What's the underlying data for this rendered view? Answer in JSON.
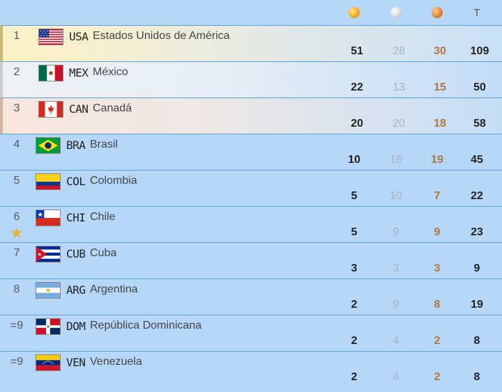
{
  "header": {
    "total_label": "T"
  },
  "rows": [
    {
      "rank": "1",
      "code": "USA",
      "name": "Estados Unidos de América",
      "gold": "51",
      "silver": "28",
      "bronze": "30",
      "total": "109"
    },
    {
      "rank": "2",
      "code": "MEX",
      "name": "México",
      "gold": "22",
      "silver": "13",
      "bronze": "15",
      "total": "50"
    },
    {
      "rank": "3",
      "code": "CAN",
      "name": "Canadá",
      "gold": "20",
      "silver": "20",
      "bronze": "18",
      "total": "58"
    },
    {
      "rank": "4",
      "code": "BRA",
      "name": "Brasil",
      "gold": "10",
      "silver": "16",
      "bronze": "19",
      "total": "45"
    },
    {
      "rank": "5",
      "code": "COL",
      "name": "Colombia",
      "gold": "5",
      "silver": "10",
      "bronze": "7",
      "total": "22"
    },
    {
      "rank": "6",
      "code": "CHI",
      "name": "Chile",
      "gold": "5",
      "silver": "9",
      "bronze": "9",
      "total": "23"
    },
    {
      "rank": "7",
      "code": "CUB",
      "name": "Cuba",
      "gold": "3",
      "silver": "3",
      "bronze": "3",
      "total": "9"
    },
    {
      "rank": "8",
      "code": "ARG",
      "name": "Argentina",
      "gold": "2",
      "silver": "9",
      "bronze": "8",
      "total": "19"
    },
    {
      "rank": "=9",
      "code": "DOM",
      "name": "República Dominicana",
      "gold": "2",
      "silver": "4",
      "bronze": "2",
      "total": "8"
    },
    {
      "rank": "=9",
      "code": "VEN",
      "name": "Venezuela",
      "gold": "2",
      "silver": "4",
      "bronze": "2",
      "total": "8"
    }
  ],
  "host_marker": "star-icon",
  "colors": {
    "background": "#b7d7f9",
    "gold": "#f2a51a",
    "silver": "#d9d9d9",
    "bronze": "#e0812f"
  }
}
